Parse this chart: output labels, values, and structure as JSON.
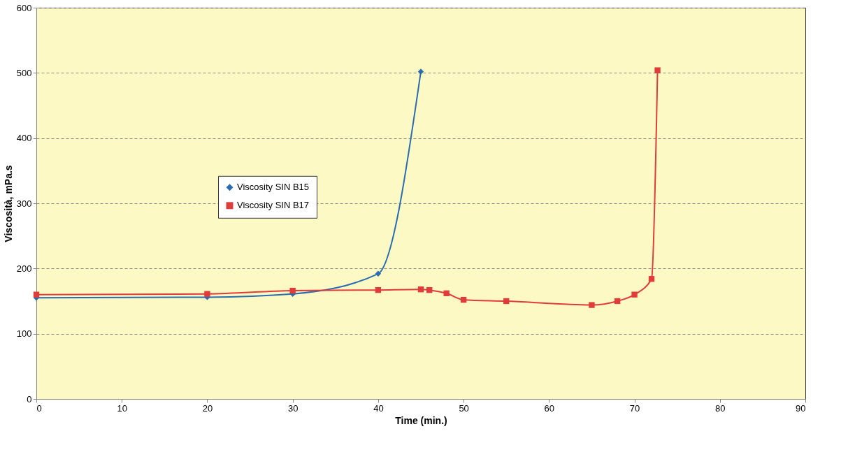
{
  "chart_data": {
    "type": "line",
    "xlabel": "Time (min.)",
    "ylabel": "Viscosità, mPa.s",
    "xlim": [
      0,
      90
    ],
    "xticks": [
      0,
      10,
      20,
      30,
      40,
      50,
      60,
      70,
      80,
      90
    ],
    "ylim": [
      0,
      600
    ],
    "yticks": [
      0,
      100,
      200,
      300,
      400,
      500,
      600
    ],
    "grid": "y",
    "legend": "left",
    "line_style": "solid",
    "series": [
      {
        "name": "Viscosity SIN B15",
        "color": "#2a6cb0",
        "marker": "diamond",
        "x": [
          0,
          20,
          30,
          40,
          45
        ],
        "values": [
          155,
          156,
          161,
          192,
          502
        ]
      },
      {
        "name": "Viscosity SIN B17",
        "color": "#e03c3c",
        "marker": "square",
        "x": [
          0,
          20,
          30,
          40,
          45,
          46,
          48,
          50,
          55,
          65,
          68,
          70,
          72,
          72.7
        ],
        "values": [
          160,
          161,
          166,
          167,
          168,
          167,
          162,
          152,
          150,
          144,
          150,
          160,
          184,
          504
        ]
      }
    ]
  }
}
